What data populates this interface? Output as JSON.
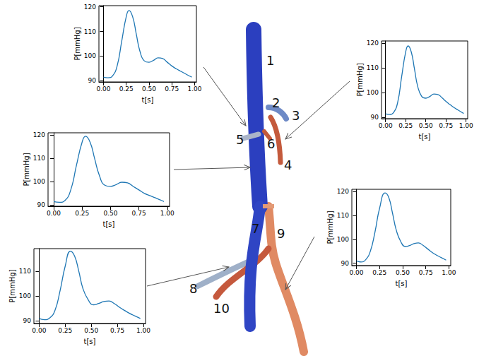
{
  "chart_data": [
    {
      "type": "line",
      "x_label": "t[s]",
      "y_label": "P[mmHg]",
      "color": "#1f77b4",
      "grid": false,
      "x": [
        0,
        0.05,
        0.1,
        0.15,
        0.2,
        0.25,
        0.28,
        0.32,
        0.36,
        0.4,
        0.45,
        0.5,
        0.55,
        0.6,
        0.65,
        0.7,
        0.75,
        0.8,
        0.85,
        0.9,
        0.95,
        0.97
      ],
      "values": [
        91.5,
        91.2,
        92,
        96,
        106,
        116,
        118.5,
        116,
        109,
        102,
        98,
        97.5,
        98.3,
        99.3,
        99,
        97.5,
        96,
        94.8,
        93.8,
        92.8,
        91.8,
        91.5
      ],
      "xlim": [
        -0.05,
        1.02
      ],
      "ylim": [
        89.5,
        120.5
      ],
      "xticks": [
        {
          "value": 0,
          "label": "0.00"
        },
        {
          "value": 0.25,
          "label": "0.25"
        },
        {
          "value": 0.5,
          "label": "0.50"
        },
        {
          "value": 0.75,
          "label": "0.75"
        },
        {
          "value": 1,
          "label": "1.00"
        }
      ],
      "yticks": [
        90,
        100,
        110,
        120
      ]
    },
    {
      "type": "line",
      "x_label": "t[s]",
      "y_label": "P[mmHg]",
      "color": "#1f77b4",
      "grid": false,
      "x": [
        0,
        0.05,
        0.1,
        0.15,
        0.2,
        0.25,
        0.28,
        0.32,
        0.36,
        0.4,
        0.45,
        0.5,
        0.55,
        0.6,
        0.65,
        0.7,
        0.75,
        0.8,
        0.85,
        0.9,
        0.95,
        0.97
      ],
      "values": [
        91.5,
        91.2,
        92,
        96,
        106.5,
        116.5,
        119,
        116.5,
        109.5,
        102.5,
        98.5,
        97.8,
        98.5,
        99.5,
        99.3,
        98,
        96.5,
        95.2,
        94,
        93,
        92,
        91.6
      ],
      "xlim": [
        -0.05,
        1.02
      ],
      "ylim": [
        89.5,
        121
      ],
      "xticks": [
        {
          "value": 0,
          "label": "0.00"
        },
        {
          "value": 0.25,
          "label": "0.25"
        },
        {
          "value": 0.5,
          "label": "0.50"
        },
        {
          "value": 0.75,
          "label": "0.75"
        },
        {
          "value": 1,
          "label": "1.00"
        }
      ],
      "yticks": [
        90,
        100,
        110,
        120
      ]
    },
    {
      "type": "line",
      "x_label": "t[s]",
      "y_label": "P[mmHg]",
      "color": "#1f77b4",
      "grid": false,
      "x": [
        0,
        0.05,
        0.1,
        0.15,
        0.2,
        0.25,
        0.28,
        0.32,
        0.36,
        0.4,
        0.45,
        0.5,
        0.55,
        0.6,
        0.65,
        0.7,
        0.75,
        0.8,
        0.85,
        0.9,
        0.95,
        0.97
      ],
      "values": [
        91.5,
        91.2,
        92,
        96.5,
        107,
        117,
        119.5,
        117,
        110,
        103,
        98.5,
        98,
        98.8,
        99.8,
        99.5,
        98,
        96.5,
        95,
        94,
        93,
        92,
        91.5
      ],
      "xlim": [
        -0.05,
        1.02
      ],
      "ylim": [
        89.5,
        121
      ],
      "xticks": [
        {
          "value": 0,
          "label": "0.00"
        },
        {
          "value": 0.25,
          "label": "0.25"
        },
        {
          "value": 0.5,
          "label": "0.50"
        },
        {
          "value": 0.75,
          "label": "0.75"
        },
        {
          "value": 1,
          "label": "1.00"
        }
      ],
      "yticks": [
        90,
        100,
        110,
        120
      ]
    },
    {
      "type": "line",
      "x_label": "t[s]",
      "y_label": "P[mmHg]",
      "color": "#1f77b4",
      "grid": false,
      "x": [
        0,
        0.05,
        0.1,
        0.15,
        0.2,
        0.25,
        0.3,
        0.34,
        0.38,
        0.42,
        0.47,
        0.52,
        0.57,
        0.62,
        0.67,
        0.72,
        0.77,
        0.82,
        0.87,
        0.92,
        0.97
      ],
      "values": [
        91,
        90.5,
        91.2,
        94,
        102,
        112,
        118,
        116,
        110,
        103,
        98.5,
        96.5,
        97,
        97.8,
        98,
        97,
        95.5,
        94.2,
        93,
        92,
        91
      ],
      "xlim": [
        -0.05,
        1.02
      ],
      "ylim": [
        89,
        119
      ],
      "xticks": [
        {
          "value": 0,
          "label": "0.00"
        },
        {
          "value": 0.25,
          "label": "0.25"
        },
        {
          "value": 0.5,
          "label": "0.50"
        },
        {
          "value": 0.75,
          "label": "0.75"
        },
        {
          "value": 1,
          "label": "1.00"
        }
      ],
      "yticks": [
        90,
        100,
        110
      ]
    },
    {
      "type": "line",
      "x_label": "t[s]",
      "y_label": "P[mmHg]",
      "color": "#1f77b4",
      "grid": false,
      "x": [
        0,
        0.05,
        0.1,
        0.15,
        0.2,
        0.25,
        0.31,
        0.35,
        0.39,
        0.43,
        0.48,
        0.53,
        0.58,
        0.63,
        0.67,
        0.72,
        0.77,
        0.82,
        0.87,
        0.92,
        0.97
      ],
      "values": [
        91,
        90.5,
        91.5,
        95,
        103,
        113,
        119.5,
        117.5,
        111,
        104,
        99,
        97,
        97.5,
        98.3,
        98.5,
        97.5,
        96,
        94.5,
        93.3,
        92.3,
        91.3
      ],
      "xlim": [
        -0.05,
        1.02
      ],
      "ylim": [
        89,
        121
      ],
      "xticks": [
        {
          "value": 0,
          "label": "0.00"
        },
        {
          "value": 0.25,
          "label": "0.25"
        },
        {
          "value": 0.5,
          "label": "0.50"
        },
        {
          "value": 0.75,
          "label": "0.75"
        },
        {
          "value": 1,
          "label": "1.00"
        }
      ],
      "yticks": [
        90,
        100,
        110,
        120
      ]
    }
  ],
  "vessel_labels": [
    "1",
    "2",
    "3",
    "4",
    "5",
    "6",
    "7",
    "8",
    "9",
    "10"
  ]
}
